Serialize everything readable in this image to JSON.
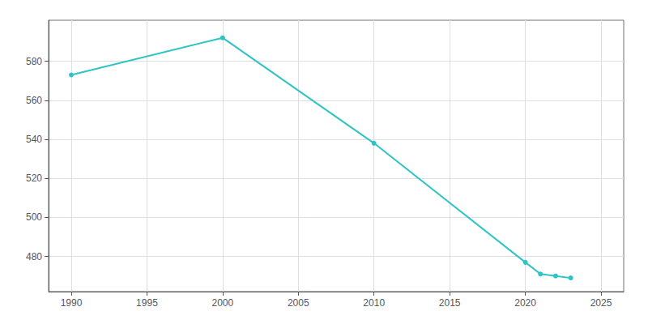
{
  "chart_data": {
    "type": "line",
    "x": [
      1990,
      2000,
      2010,
      2020,
      2021,
      2022,
      2023
    ],
    "values": [
      573,
      592,
      538,
      477,
      471,
      470,
      469
    ],
    "color": "#2ec4c4",
    "marker": "circle",
    "xlim": [
      1988.5,
      2026.5
    ],
    "ylim": [
      462,
      601
    ],
    "xticks": [
      1990,
      1995,
      2000,
      2005,
      2010,
      2015,
      2020,
      2025
    ],
    "yticks": [
      480,
      500,
      520,
      540,
      560,
      580
    ],
    "grid": true
  }
}
